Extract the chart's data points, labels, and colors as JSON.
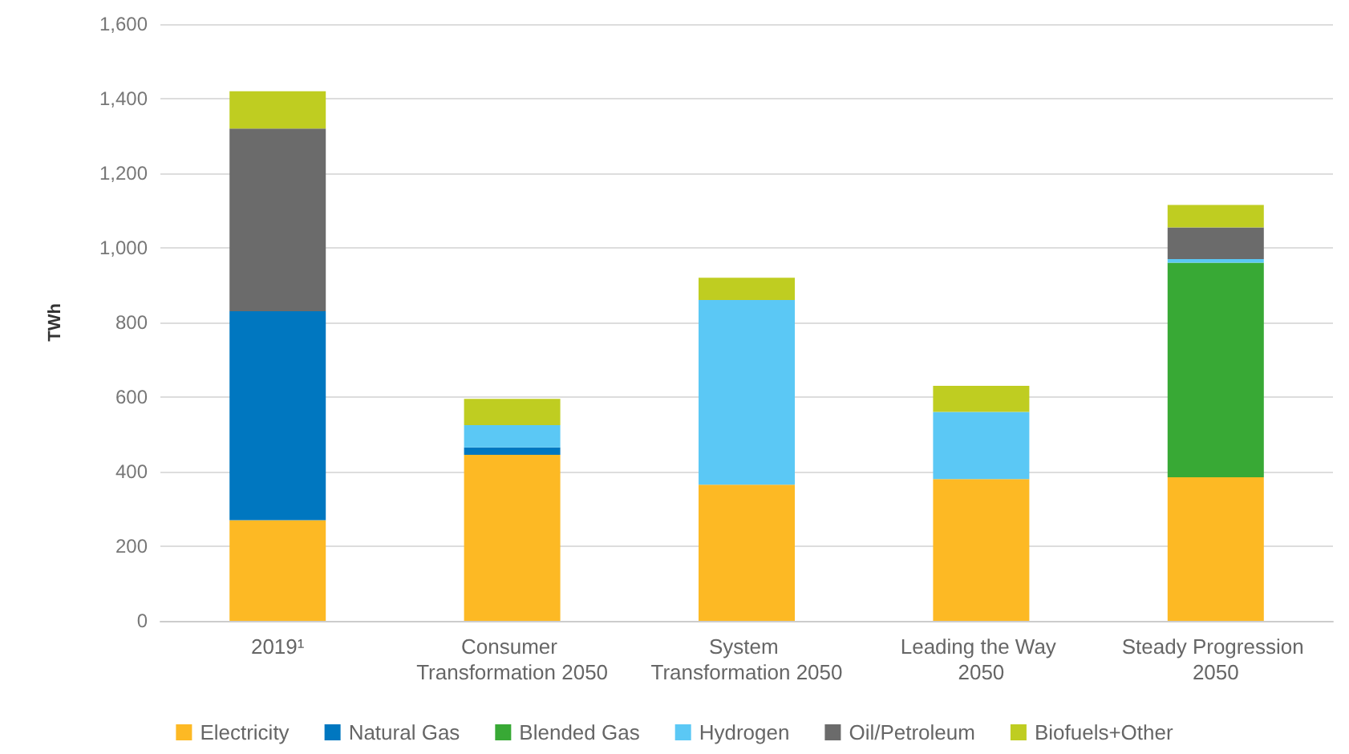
{
  "chart_data": {
    "type": "bar",
    "stacked": true,
    "ylabel": "TWh",
    "categories": [
      "2019¹",
      "Consumer Transformation 2050",
      "System Transformation 2050",
      "Leading the Way 2050",
      "Steady Progression 2050"
    ],
    "series": [
      {
        "name": "Electricity",
        "color": "#fdb924",
        "values": [
          270,
          445,
          365,
          380,
          385
        ]
      },
      {
        "name": "Natural Gas",
        "color": "#0077c0",
        "values": [
          560,
          20,
          0,
          0,
          0
        ]
      },
      {
        "name": "Blended Gas",
        "color": "#38a935",
        "values": [
          0,
          0,
          0,
          0,
          575
        ]
      },
      {
        "name": "Hydrogen",
        "color": "#5bc8f5",
        "values": [
          0,
          60,
          495,
          180,
          10
        ]
      },
      {
        "name": "Oil/Petroleum",
        "color": "#6b6b6b",
        "values": [
          490,
          0,
          0,
          0,
          85
        ]
      },
      {
        "name": "Biofuels+Other",
        "color": "#bfcd21",
        "values": [
          100,
          70,
          60,
          70,
          60
        ]
      }
    ],
    "ylim": [
      0,
      1600
    ],
    "yticks": [
      0,
      200,
      400,
      600,
      800,
      {
        "value": 1000,
        "label": "1,000"
      },
      {
        "value": 1200,
        "label": "1,200"
      },
      {
        "value": 1400,
        "label": "1,400"
      },
      {
        "value": 1600,
        "label": "1,600"
      }
    ],
    "grid": "y",
    "legend": "bottom"
  }
}
